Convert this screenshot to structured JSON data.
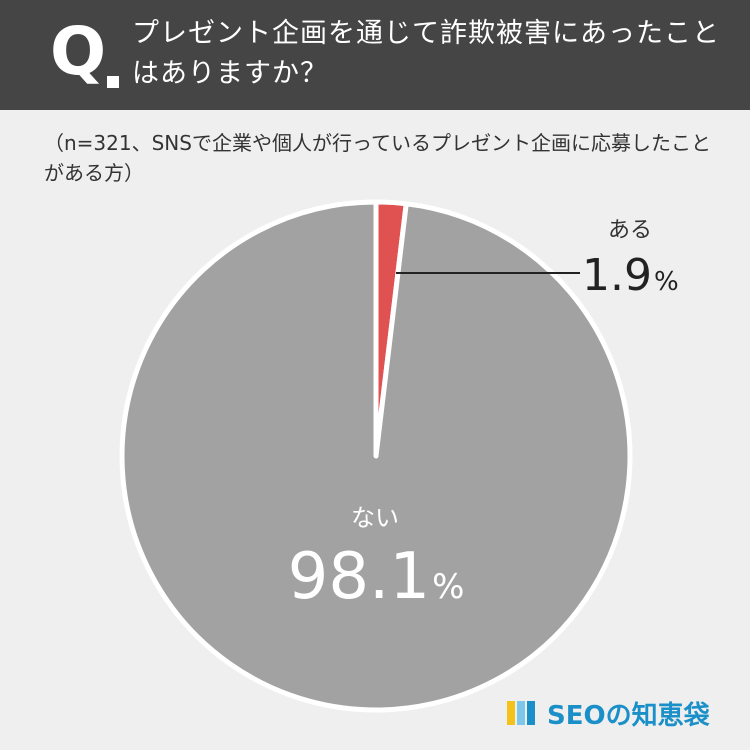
{
  "question": {
    "mark": "Q",
    "text": "プレゼント企画を通じて詐欺被害にあったことはありますか？"
  },
  "note": "（n=321、SNSで企業や個人が行っているプレゼント企画に応募したことがある方）",
  "brand": {
    "name": "SEOの知恵袋"
  },
  "colors": {
    "header_bg": "#454545",
    "background": "#efefef",
    "slice_yes": "#e05252",
    "slice_no": "#a2a2a2",
    "brand_blue": "#1a8fc8",
    "brand_yellow": "#f3c21b",
    "brand_light_blue": "#7ec6ea"
  },
  "chart_data": {
    "type": "pie",
    "slices": [
      {
        "label": "ある",
        "value": 1.9,
        "display": "1.9",
        "unit": "%"
      },
      {
        "label": "ない",
        "value": 98.1,
        "display": "98.1",
        "unit": "%"
      }
    ],
    "start_angle": "12 o'clock",
    "direction": "clockwise"
  }
}
